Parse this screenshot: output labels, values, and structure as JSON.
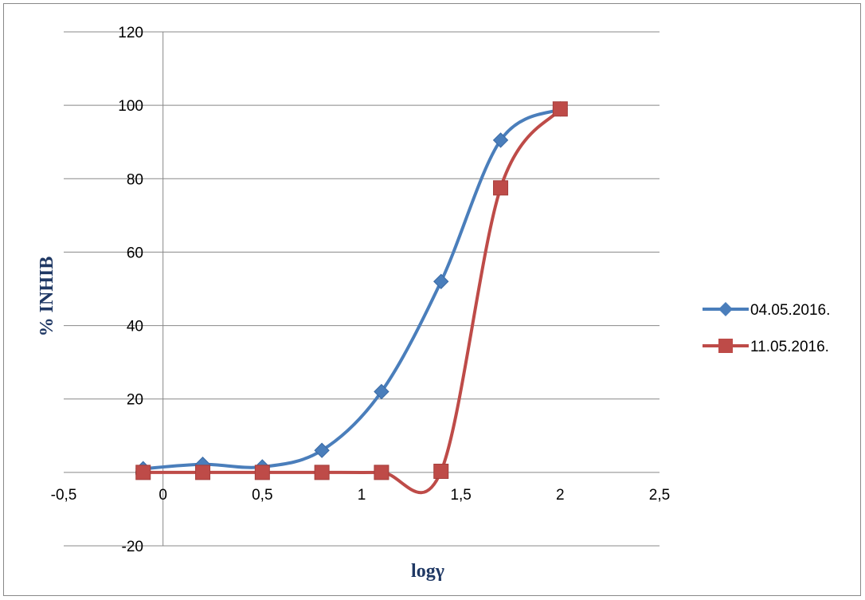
{
  "chart_data": {
    "type": "line",
    "xlabel": "logγ",
    "ylabel": "% INHIB",
    "xlim": [
      -0.5,
      2.5
    ],
    "ylim": [
      -20,
      120
    ],
    "x_ticks": [
      "-0,5",
      "0",
      "0,5",
      "1",
      "1,5",
      "2",
      "2,5"
    ],
    "y_ticks": [
      "-20",
      "0",
      "20",
      "40",
      "60",
      "80",
      "100",
      "120"
    ],
    "x_tick_values": [
      -0.5,
      0,
      0.5,
      1,
      1.5,
      2,
      2.5
    ],
    "y_tick_values": [
      -20,
      0,
      20,
      40,
      60,
      80,
      100,
      120
    ],
    "grid": "horizontal",
    "legend_position": "right",
    "series": [
      {
        "name": "04.05.2016.",
        "color": "#4a7ebb",
        "marker": "diamond",
        "x": [
          -0.1,
          0.2,
          0.5,
          0.8,
          1.1,
          1.4,
          1.7,
          2.0
        ],
        "y": [
          1,
          2.2,
          1.5,
          6,
          22,
          52,
          90.5,
          99
        ]
      },
      {
        "name": "11.05.2016.",
        "color": "#be4b48",
        "marker": "square",
        "x": [
          -0.1,
          0.2,
          0.5,
          0.8,
          1.1,
          1.4,
          1.7,
          2.0
        ],
        "y": [
          0,
          0,
          0,
          0,
          0,
          0.3,
          77.5,
          99
        ]
      }
    ]
  }
}
